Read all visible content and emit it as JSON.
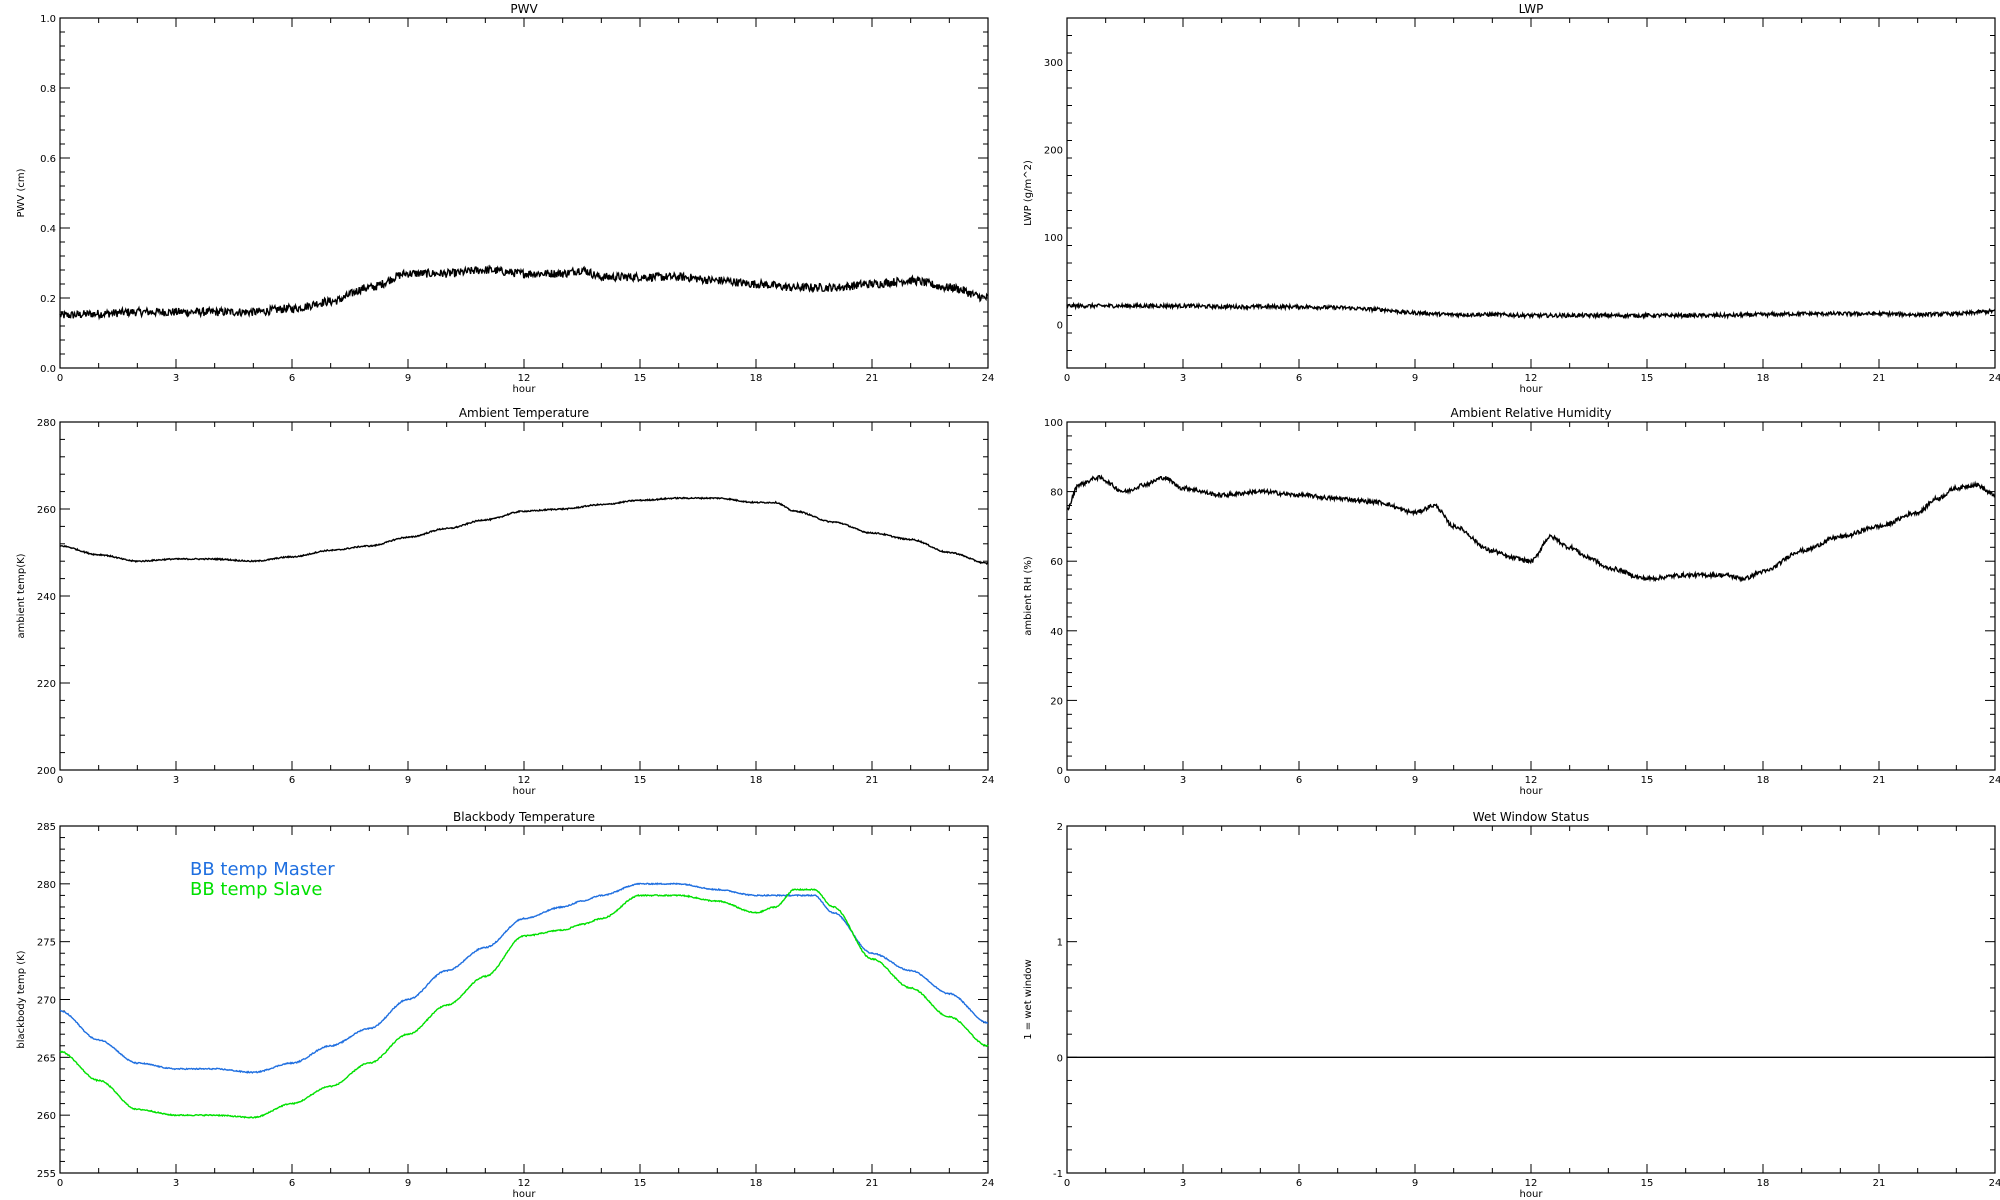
{
  "chart_data": [
    {
      "type": "line",
      "title": "PWV",
      "xlabel": "hour",
      "ylabel": "PWV (cm)",
      "xlim": [
        0,
        24
      ],
      "ylim": [
        0,
        1.0
      ],
      "xticks": [
        "0",
        "3",
        "6",
        "9",
        "12",
        "15",
        "18",
        "21",
        "24"
      ],
      "yticks": [
        "0.0",
        "0.2",
        "0.4",
        "0.6",
        "0.8",
        "1.0"
      ],
      "ytick_values": [
        0,
        0.2,
        0.4,
        0.6,
        0.8,
        1.0
      ],
      "series": [
        {
          "color": "#000000",
          "noise": 0.012,
          "x": [
            0,
            1,
            2,
            3,
            4,
            5,
            6,
            7,
            8,
            9,
            10,
            11,
            12,
            13,
            13.5,
            14,
            15,
            16,
            17,
            18,
            19,
            20,
            21,
            22,
            23,
            24
          ],
          "y": [
            0.15,
            0.155,
            0.16,
            0.16,
            0.16,
            0.16,
            0.17,
            0.19,
            0.23,
            0.27,
            0.27,
            0.28,
            0.27,
            0.27,
            0.28,
            0.26,
            0.26,
            0.26,
            0.25,
            0.24,
            0.23,
            0.23,
            0.24,
            0.25,
            0.23,
            0.2
          ]
        }
      ]
    },
    {
      "type": "line",
      "title": "LWP",
      "xlabel": "hour",
      "ylabel": "LWP (g/m^2)",
      "xlim": [
        0,
        24
      ],
      "ylim": [
        -50,
        350
      ],
      "xticks": [
        "0",
        "3",
        "6",
        "9",
        "12",
        "15",
        "18",
        "21",
        "24"
      ],
      "yticks": [
        "0",
        "100",
        "200",
        "300"
      ],
      "ytick_values": [
        0,
        100,
        200,
        300
      ],
      "series": [
        {
          "color": "#000000",
          "noise": 2.2,
          "x": [
            0,
            1,
            2,
            3,
            4,
            5,
            6,
            7,
            8,
            9,
            10,
            11,
            12,
            13,
            14,
            15,
            16,
            17,
            18,
            19,
            20,
            21,
            22,
            23,
            24
          ],
          "y": [
            21,
            21,
            21,
            21,
            20,
            20,
            20,
            19,
            17,
            13,
            11,
            11,
            10,
            10,
            10,
            10,
            10,
            10,
            11,
            12,
            12,
            12,
            11,
            12,
            15
          ]
        }
      ]
    },
    {
      "type": "line",
      "title": "Ambient Temperature",
      "xlabel": "hour",
      "ylabel": "ambient temp(K)",
      "xlim": [
        0,
        24
      ],
      "ylim": [
        200,
        280
      ],
      "xticks": [
        "0",
        "3",
        "6",
        "9",
        "12",
        "15",
        "18",
        "21",
        "24"
      ],
      "yticks": [
        "200",
        "220",
        "240",
        "260",
        "280"
      ],
      "ytick_values": [
        200,
        220,
        240,
        260,
        280
      ],
      "series": [
        {
          "color": "#000000",
          "noise": 0.15,
          "x": [
            0,
            1,
            2,
            3,
            4,
            5,
            6,
            7,
            8,
            9,
            10,
            11,
            12,
            13,
            14,
            15,
            16,
            17,
            18,
            18.5,
            19,
            20,
            21,
            22,
            23,
            24
          ],
          "y": [
            251.5,
            249.5,
            248,
            248.5,
            248.5,
            248,
            249,
            250.5,
            251.5,
            253.5,
            255.5,
            257.5,
            259.5,
            260,
            261,
            262,
            262.5,
            262.5,
            261.5,
            261.5,
            259.5,
            257,
            254.5,
            253,
            250,
            247.5
          ]
        }
      ]
    },
    {
      "type": "line",
      "title": "Ambient Relative Humidity",
      "xlabel": "hour",
      "ylabel": "ambient RH (%)",
      "xlim": [
        0,
        24
      ],
      "ylim": [
        0,
        100
      ],
      "xticks": [
        "0",
        "3",
        "6",
        "9",
        "12",
        "15",
        "18",
        "21",
        "24"
      ],
      "yticks": [
        "0",
        "20",
        "40",
        "60",
        "80",
        "100"
      ],
      "ytick_values": [
        0,
        20,
        40,
        60,
        80,
        100
      ],
      "series": [
        {
          "color": "#000000",
          "noise": 0.6,
          "x": [
            0,
            0.3,
            0.8,
            1.5,
            2,
            2.5,
            3,
            4,
            5,
            6,
            7,
            8,
            9,
            9.5,
            10,
            11,
            11.5,
            12,
            12.5,
            13,
            13.5,
            14,
            15,
            16,
            17,
            17.5,
            18,
            19,
            20,
            21,
            22,
            22.5,
            23,
            23.5,
            24
          ],
          "y": [
            75,
            82,
            84,
            80,
            82,
            84,
            81,
            79,
            80,
            79,
            78,
            77,
            74,
            76,
            70,
            63,
            61,
            60,
            67,
            64,
            61,
            58,
            55,
            56,
            56,
            55,
            57,
            63,
            67,
            70,
            74,
            78,
            81,
            82,
            79
          ]
        }
      ]
    },
    {
      "type": "line",
      "title": "Blackbody Temperature",
      "xlabel": "hour",
      "ylabel": "blackbody temp (K)",
      "xlim": [
        0,
        24
      ],
      "ylim": [
        255,
        285
      ],
      "xticks": [
        "0",
        "3",
        "6",
        "9",
        "12",
        "15",
        "18",
        "21",
        "24"
      ],
      "yticks": [
        "255",
        "260",
        "265",
        "270",
        "275",
        "280",
        "285"
      ],
      "ytick_values": [
        255,
        260,
        265,
        270,
        275,
        280,
        285
      ],
      "legend": "top-left",
      "series": [
        {
          "name": "BB temp Master",
          "color": "#1f6fe0",
          "noise": 0.05,
          "x": [
            0,
            1,
            2,
            3,
            4,
            5,
            6,
            7,
            8,
            9,
            10,
            11,
            12,
            13,
            13.5,
            14,
            15,
            16,
            17,
            18,
            19,
            19.5,
            20,
            21,
            22,
            23,
            24
          ],
          "y": [
            269,
            266.5,
            264.5,
            264,
            264,
            263.7,
            264.5,
            266,
            267.5,
            270,
            272.5,
            274.5,
            277,
            278,
            278.5,
            279,
            280,
            280,
            279.5,
            279,
            279,
            279,
            277.5,
            274,
            272.5,
            270.5,
            268
          ]
        },
        {
          "name": "BB temp Slave",
          "color": "#00e000",
          "noise": 0.05,
          "x": [
            0,
            1,
            2,
            3,
            4,
            5,
            6,
            7,
            8,
            9,
            10,
            11,
            12,
            13,
            13.5,
            14,
            15,
            16,
            17,
            18,
            18.5,
            19,
            19.5,
            20,
            21,
            22,
            23,
            24
          ],
          "y": [
            265.5,
            263,
            260.5,
            260,
            260,
            259.8,
            261,
            262.5,
            264.5,
            267,
            269.5,
            272,
            275.5,
            276,
            276.5,
            277,
            279,
            279,
            278.5,
            277.5,
            278,
            279.5,
            279.5,
            278,
            273.5,
            271,
            268.5,
            266
          ]
        }
      ]
    },
    {
      "type": "line",
      "title": "Wet Window Status",
      "xlabel": "hour",
      "ylabel": "1 = wet window",
      "xlim": [
        0,
        24
      ],
      "ylim": [
        -1,
        2
      ],
      "xticks": [
        "0",
        "3",
        "6",
        "9",
        "12",
        "15",
        "18",
        "21",
        "24"
      ],
      "yticks": [
        "-1",
        "0",
        "1",
        "2"
      ],
      "ytick_values": [
        -1,
        0,
        1,
        2
      ],
      "series": [
        {
          "color": "#000000",
          "noise": 0,
          "x": [
            0,
            24
          ],
          "y": [
            0,
            0
          ]
        }
      ]
    }
  ]
}
